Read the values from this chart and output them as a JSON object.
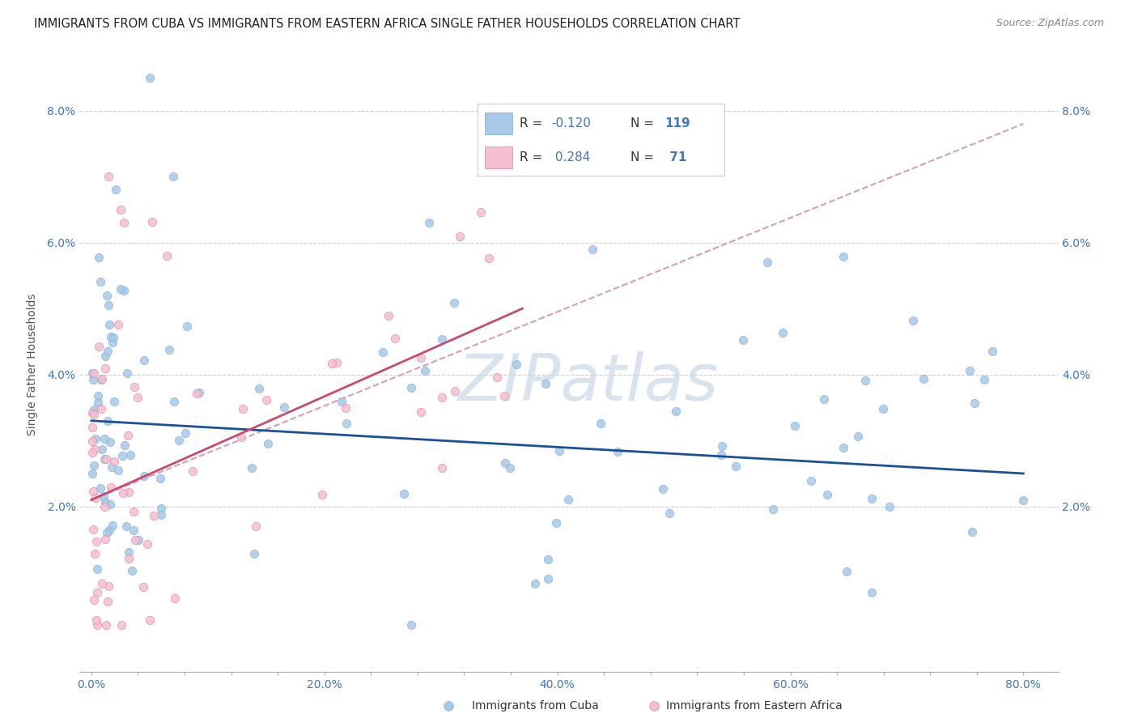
{
  "title": "IMMIGRANTS FROM CUBA VS IMMIGRANTS FROM EASTERN AFRICA SINGLE FATHER HOUSEHOLDS CORRELATION CHART",
  "source": "Source: ZipAtlas.com",
  "xlabel_ticks": [
    "0.0%",
    "",
    "",
    "",
    "",
    "20.0%",
    "",
    "",
    "",
    "",
    "40.0%",
    "",
    "",
    "",
    "",
    "60.0%",
    "",
    "",
    "",
    "",
    "80.0%"
  ],
  "xlabel_tick_vals": [
    0.0,
    0.04,
    0.08,
    0.12,
    0.16,
    0.2,
    0.24,
    0.28,
    0.32,
    0.36,
    0.4,
    0.44,
    0.48,
    0.52,
    0.56,
    0.6,
    0.64,
    0.68,
    0.72,
    0.76,
    0.8
  ],
  "ylabel_ticks": [
    "2.0%",
    "4.0%",
    "6.0%",
    "8.0%"
  ],
  "ylabel_tick_vals": [
    0.02,
    0.04,
    0.06,
    0.08
  ],
  "xlim": [
    -0.01,
    0.83
  ],
  "ylim": [
    -0.005,
    0.088
  ],
  "cuba_color": "#a8c8e8",
  "cuba_color_edge": "#7bafd4",
  "eastern_africa_color": "#f5bfd0",
  "eastern_africa_color_edge": "#e080a0",
  "trend_cuba_color": "#1a4f9c",
  "trend_ea_color": "#c84b6e",
  "trend_dashed_color": "#d4a0b0",
  "R_cuba": -0.12,
  "N_cuba": 119,
  "R_ea": 0.284,
  "N_ea": 71,
  "watermark_text": "ZIPatlas",
  "watermark_color": "#c8d8e8",
  "legend_label_cuba": "Immigrants from Cuba",
  "legend_label_ea": "Immigrants from Eastern Africa",
  "trend_cuba_x0": 0.0,
  "trend_cuba_y0": 0.033,
  "trend_cuba_x1": 0.8,
  "trend_cuba_y1": 0.025,
  "trend_ea_x0": 0.0,
  "trend_ea_y0": 0.021,
  "trend_ea_x1": 0.37,
  "trend_ea_y1": 0.05,
  "trend_dashed_x0": 0.0,
  "trend_dashed_y0": 0.021,
  "trend_dashed_x1": 0.8,
  "trend_dashed_y1": 0.078,
  "grid_color": "#d0d0d0",
  "background_color": "#ffffff",
  "title_fontsize": 10.5,
  "tick_fontsize": 10,
  "legend_fontsize": 11
}
